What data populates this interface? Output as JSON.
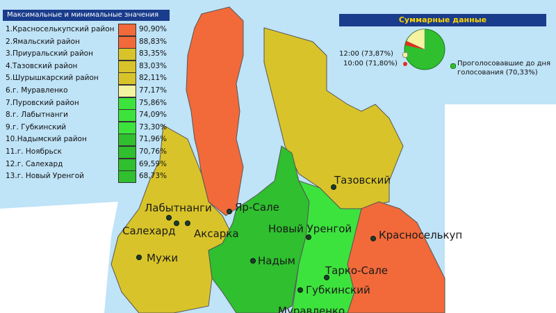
{
  "panel": {
    "title": "Максимальные и минимальные значения",
    "rows": [
      {
        "label": "1.Красноселькупский район",
        "value": "90,90%",
        "color": "#f26a3a"
      },
      {
        "label": "2.Ямальский район",
        "value": "88,83%",
        "color": "#f26a3a"
      },
      {
        "label": "3.Приуральский район",
        "value": "83,35%",
        "color": "#d8c42a"
      },
      {
        "label": "4.Тазовский район",
        "value": "83,03%",
        "color": "#d8c42a"
      },
      {
        "label": "5.Шурышкарский район",
        "value": "82,11%",
        "color": "#d8c42a"
      },
      {
        "label": "6.г. Муравленко",
        "value": "77,17%",
        "color": "#f3f3a0"
      },
      {
        "label": "7.Пуровский район",
        "value": "75,86%",
        "color": "#3de33d"
      },
      {
        "label": "8.г. Лабытнанги",
        "value": "74,09%",
        "color": "#3de33d"
      },
      {
        "label": "9.г. Губкинский",
        "value": "73,30%",
        "color": "#3de33d"
      },
      {
        "label": "10.Надымский район",
        "value": "71,96%",
        "color": "#2fbf2f"
      },
      {
        "label": "11.г. Ноябрьск",
        "value": "70,76%",
        "color": "#2fbf2f"
      },
      {
        "label": "12.г. Салехард",
        "value": "69,59%",
        "color": "#2fbf2f"
      },
      {
        "label": "13.г. Новый Уренгой",
        "value": "68,73%",
        "color": "#2fbf2f"
      }
    ]
  },
  "summary": {
    "title": "Суммарные данные",
    "label_12": "12:00 (73,87%)",
    "label_10": "10:00 (71,80%)",
    "label_voted_line1": "Проголосовавшие до дня",
    "label_voted_line2": "голосования (70,33%)"
  },
  "cities": [
    {
      "name": "Лабытнанги"
    },
    {
      "name": "Яр-Сале"
    },
    {
      "name": "Салехард"
    },
    {
      "name": "Аксарка"
    },
    {
      "name": "Новый Уренгой"
    },
    {
      "name": "Тазовский"
    },
    {
      "name": "Красноселькуп"
    },
    {
      "name": "Мужи"
    },
    {
      "name": "Надым"
    },
    {
      "name": "Тарко-Сале"
    },
    {
      "name": "Губкинский"
    },
    {
      "name": "Муравленко"
    }
  ],
  "colors": {
    "water": "#bfe3f7",
    "land_outside": "#ffffff",
    "orange": "#f26a3a",
    "olive": "#d8c42a",
    "green_light": "#3de33d",
    "green_mid": "#2fbf2f",
    "green_dark": "#1f9f1f"
  }
}
